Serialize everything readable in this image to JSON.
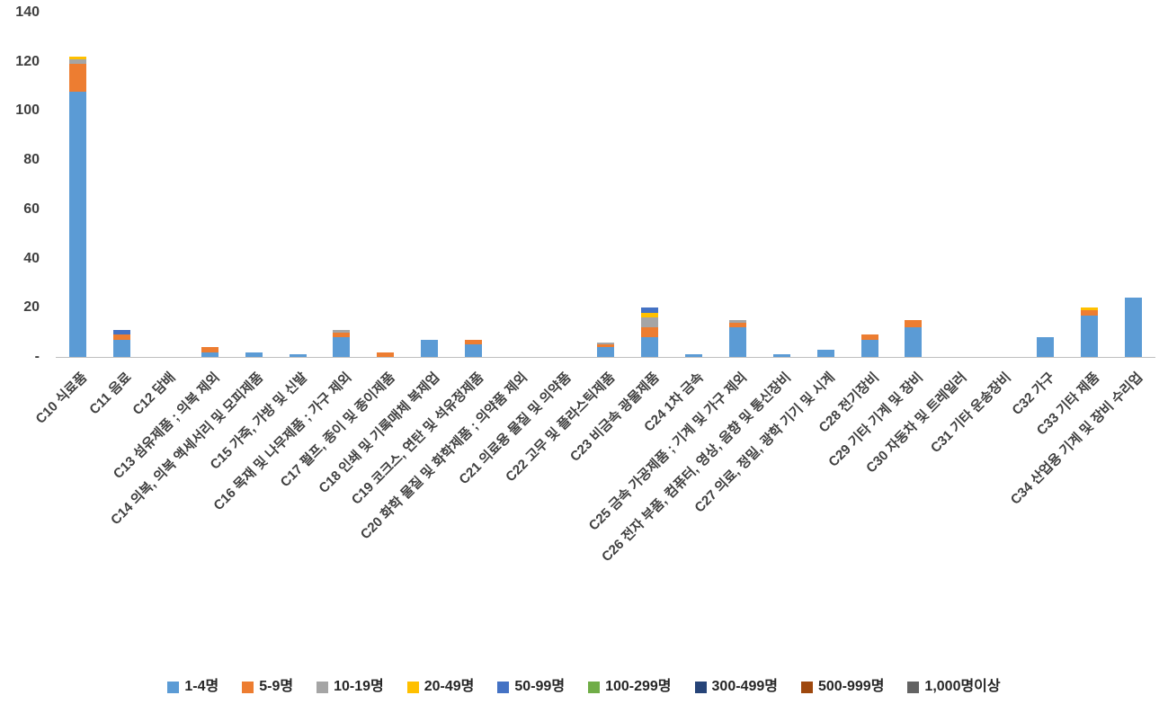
{
  "chart_data": {
    "type": "bar",
    "stacked": true,
    "title": "",
    "xlabel": "",
    "ylabel": "",
    "ylim": [
      0,
      140
    ],
    "grid": false,
    "legend_position": "bottom",
    "y_ticks": [
      {
        "value": 0,
        "label": "-"
      },
      {
        "value": 20,
        "label": "20"
      },
      {
        "value": 40,
        "label": "40"
      },
      {
        "value": 60,
        "label": "60"
      },
      {
        "value": 80,
        "label": "80"
      },
      {
        "value": 100,
        "label": "100"
      },
      {
        "value": 120,
        "label": "120"
      },
      {
        "value": 140,
        "label": "140"
      }
    ],
    "categories": [
      "C10 식료품",
      "C11 음료",
      "C12 담배",
      "C13 섬유제품 ; 의복 제외",
      "C14 의복, 의복 액세서리 및 모피제품",
      "C15 가죽, 가방 및 신발",
      "C16 목재 및 나무제품 ; 가구 제외",
      "C17 펄프, 종이 및 종이제품",
      "C18 인쇄 및 기록매체 복제업",
      "C19 코크스, 연탄 및 석유정제품",
      "C20 화학 물질 및 화학제품 ; 의약품 제외",
      "C21 의료용 물질 및 의약품",
      "C22 고무 및 플라스틱제품",
      "C23 비금속 광물제품",
      "C24 1차 금속",
      "C25 금속 가공제품 ; 기계 및 가구 제외",
      "C26 전자 부품, 컴퓨터, 영상, 음향 및 통신장비",
      "C27 의료, 정밀, 광학 기기 및 시계",
      "C28 전기장비",
      "C29 기타 기계 및 장비",
      "C30 자동차 및 트레일러",
      "C31 기타 운송장비",
      "C32 가구",
      "C33 기타 제품",
      "C34 산업용 기계 및 장비 수리업"
    ],
    "series": [
      {
        "name": "1-4명",
        "color": "#5B9BD5",
        "values": [
          108,
          7,
          0,
          2,
          2,
          1,
          8,
          0,
          7,
          5,
          0,
          0,
          4,
          8,
          1,
          12,
          1,
          3,
          7,
          12,
          0,
          0,
          8,
          17,
          24
        ]
      },
      {
        "name": "5-9명",
        "color": "#ED7D31",
        "values": [
          11,
          2,
          0,
          2,
          0,
          0,
          2,
          2,
          0,
          2,
          0,
          0,
          1,
          4,
          0,
          2,
          0,
          0,
          2,
          3,
          0,
          0,
          0,
          2,
          0
        ]
      },
      {
        "name": "10-19명",
        "color": "#A5A5A5",
        "values": [
          2,
          0,
          0,
          0,
          0,
          0,
          1,
          0,
          0,
          0,
          0,
          0,
          1,
          4,
          0,
          1,
          0,
          0,
          0,
          0,
          0,
          0,
          0,
          0,
          0
        ]
      },
      {
        "name": "20-49명",
        "color": "#FFC000",
        "values": [
          1,
          0,
          0,
          0,
          0,
          0,
          0,
          0,
          0,
          0,
          0,
          0,
          0,
          2,
          0,
          0,
          0,
          0,
          0,
          0,
          0,
          0,
          0,
          1,
          0
        ]
      },
      {
        "name": "50-99명",
        "color": "#4472C4",
        "values": [
          0,
          2,
          0,
          0,
          0,
          0,
          0,
          0,
          0,
          0,
          0,
          0,
          0,
          2,
          0,
          0,
          0,
          0,
          0,
          0,
          0,
          0,
          0,
          0,
          0
        ]
      },
      {
        "name": "100-299명",
        "color": "#70AD47",
        "values": [
          0,
          0,
          0,
          0,
          0,
          0,
          0,
          0,
          0,
          0,
          0,
          0,
          0,
          0,
          0,
          0,
          0,
          0,
          0,
          0,
          0,
          0,
          0,
          0,
          0
        ]
      },
      {
        "name": "300-499명",
        "color": "#264478",
        "values": [
          0,
          0,
          0,
          0,
          0,
          0,
          0,
          0,
          0,
          0,
          0,
          0,
          0,
          0,
          0,
          0,
          0,
          0,
          0,
          0,
          0,
          0,
          0,
          0,
          0
        ]
      },
      {
        "name": "500-999명",
        "color": "#9E480E",
        "values": [
          0,
          0,
          0,
          0,
          0,
          0,
          0,
          0,
          0,
          0,
          0,
          0,
          0,
          0,
          0,
          0,
          0,
          0,
          0,
          0,
          0,
          0,
          0,
          0,
          0
        ]
      },
      {
        "name": "1,000명이상",
        "color": "#636363",
        "values": [
          0,
          0,
          0,
          0,
          0,
          0,
          0,
          0,
          0,
          0,
          0,
          0,
          0,
          0,
          0,
          0,
          0,
          0,
          0,
          0,
          0,
          0,
          0,
          0,
          0
        ]
      }
    ]
  }
}
